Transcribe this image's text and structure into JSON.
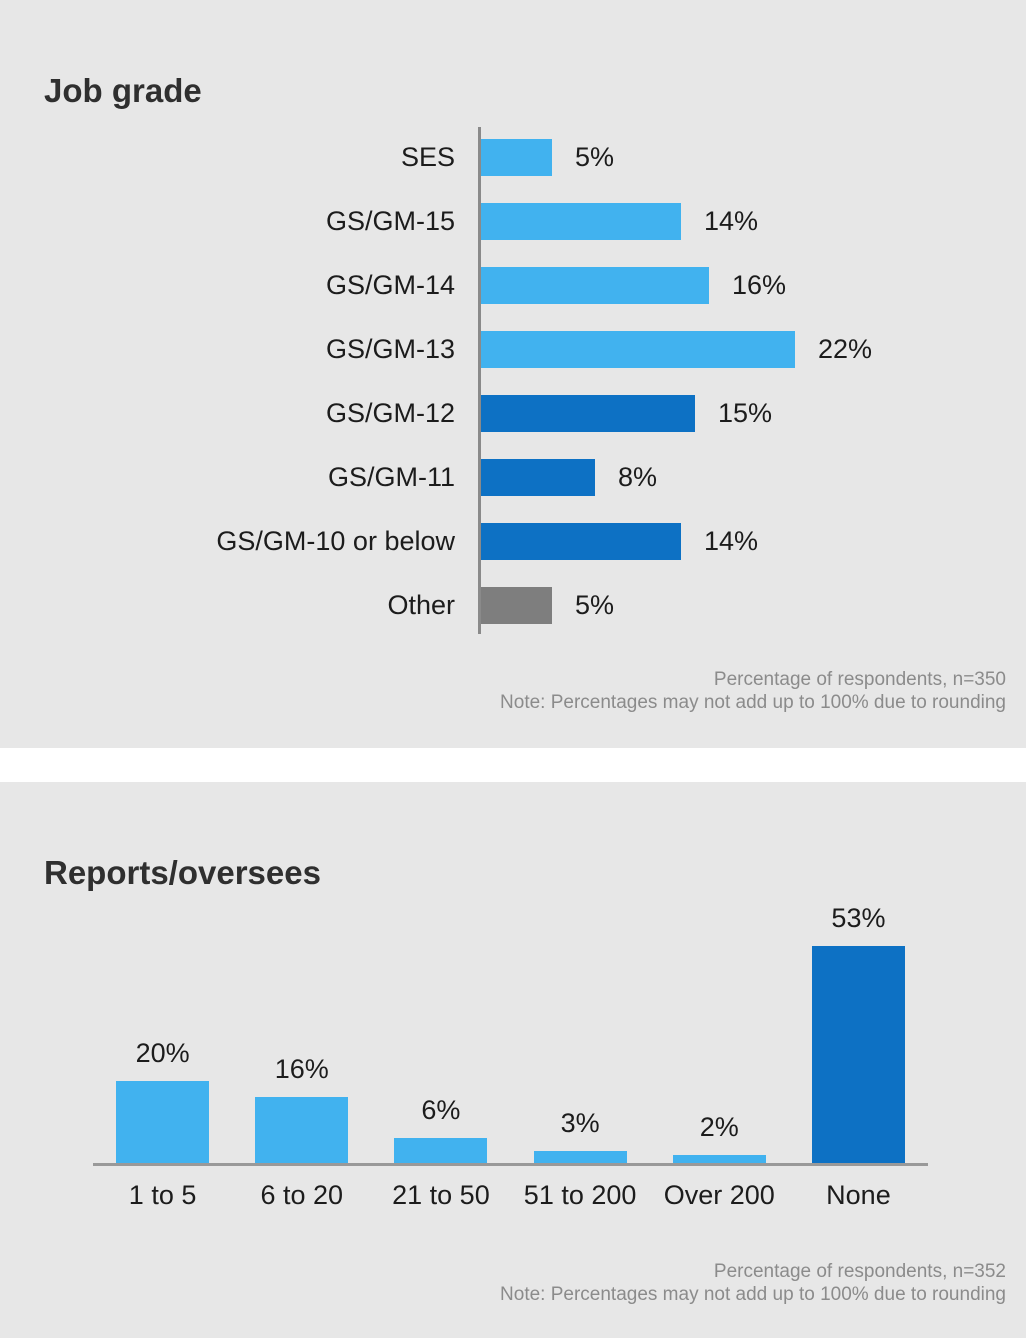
{
  "colors": {
    "page_background": "#ffffff",
    "panel_background": "#e7e7e7",
    "light_blue": "#41b2ef",
    "dark_blue": "#0d71c4",
    "gray_bar": "#7e7e7e",
    "axis_gray": "#8a8a8a",
    "label_dark": "#1c1c1c",
    "title_dark": "#2f2f2f",
    "footnote_gray": "#8b8b8b"
  },
  "chart_data": [
    {
      "type": "bar",
      "orientation": "horizontal",
      "title": "Job grade",
      "categories": [
        "SES",
        "GS/GM-15",
        "GS/GM-14",
        "GS/GM-13",
        "GS/GM-12",
        "GS/GM-11",
        "GS/GM-10 or below",
        "Other"
      ],
      "values": [
        5,
        14,
        16,
        22,
        15,
        8,
        14,
        5
      ],
      "value_labels": [
        "5%",
        "14%",
        "16%",
        "22%",
        "15%",
        "8%",
        "14%",
        "5%"
      ],
      "bar_colors": [
        "#41b2ef",
        "#41b2ef",
        "#41b2ef",
        "#41b2ef",
        "#0d71c4",
        "#0d71c4",
        "#0d71c4",
        "#7e7e7e"
      ],
      "xlim": [
        0,
        25
      ],
      "grid": false,
      "legend": false,
      "source_note": "Percentage of respondents, n=350",
      "rounding_note": "Note: Percentages may not add up to 100% due to rounding"
    },
    {
      "type": "bar",
      "orientation": "vertical",
      "title": "Reports/oversees",
      "categories": [
        "1 to 5",
        "6 to 20",
        "21 to 50",
        "51 to 200",
        "Over 200",
        "None"
      ],
      "values": [
        20,
        16,
        6,
        3,
        2,
        53
      ],
      "value_labels": [
        "20%",
        "16%",
        "6%",
        "3%",
        "2%",
        "53%"
      ],
      "bar_colors": [
        "#41b2ef",
        "#41b2ef",
        "#41b2ef",
        "#41b2ef",
        "#41b2ef",
        "#0d71c4"
      ],
      "ylim": [
        0,
        60
      ],
      "grid": false,
      "legend": false,
      "source_note": "Percentage of respondents, n=352",
      "rounding_note": "Note: Percentages may not add up to 100% due to rounding"
    }
  ]
}
